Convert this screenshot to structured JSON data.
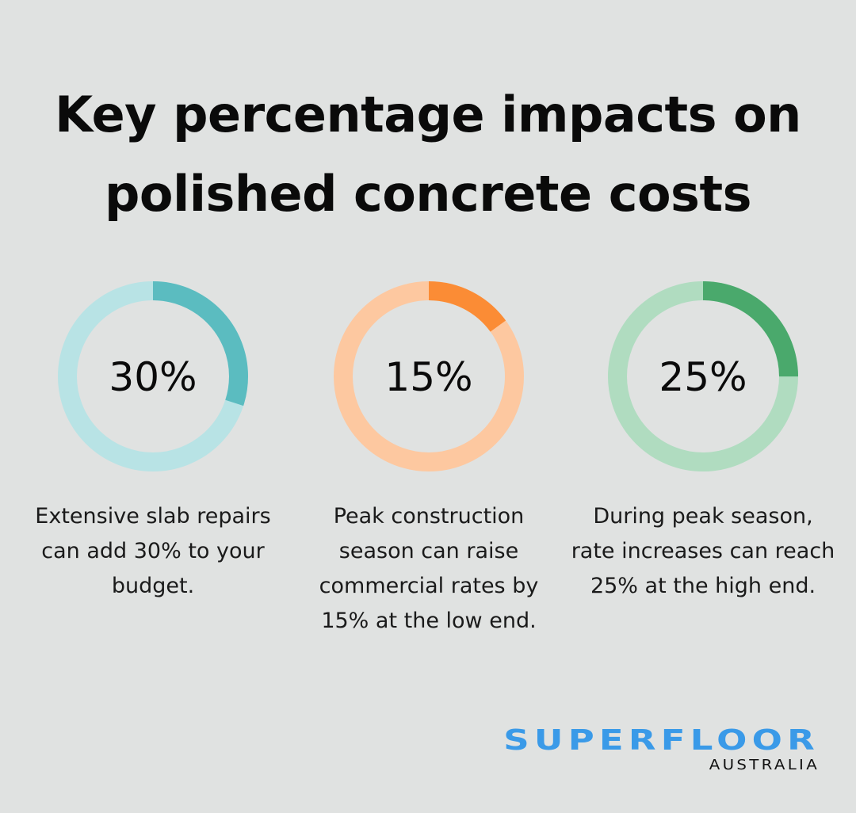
{
  "title": "Key percentage impacts on polished concrete costs",
  "chart_data": [
    {
      "type": "pie",
      "variant": "donut",
      "value": 30,
      "max": 100,
      "label": "30%",
      "description": "Extensive slab repairs can add 30% to your budget.",
      "color": "#5bbcc0",
      "track_color": "#b8e3e5"
    },
    {
      "type": "pie",
      "variant": "donut",
      "value": 15,
      "max": 100,
      "label": "15%",
      "description": "Peak construction season can raise commercial rates by 15% at the low end.",
      "color": "#fb8c35",
      "track_color": "#fdc8a0"
    },
    {
      "type": "pie",
      "variant": "donut",
      "value": 25,
      "max": 100,
      "label": "25%",
      "description": "During peak season, rate increases can reach 25% at the high end.",
      "color": "#4aa96c",
      "track_color": "#b0dcc0"
    }
  ],
  "logo": {
    "main": "SUPERFLOOR",
    "sub": "AUSTRALIA"
  }
}
